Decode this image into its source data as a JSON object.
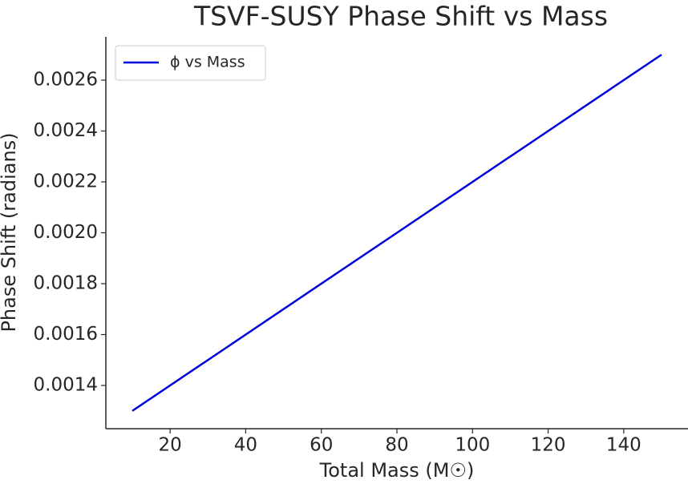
{
  "chart_data": {
    "type": "line",
    "title": "TSVF-SUSY Phase Shift vs Mass",
    "xlabel": "Total Mass (M☉)",
    "ylabel": "Phase Shift (radians)",
    "x": [
      10,
      150
    ],
    "series": [
      {
        "name": "ϕ vs Mass",
        "color": "#0000dd",
        "values": [
          0.0013,
          0.0027
        ]
      }
    ],
    "xlim": [
      3,
      157
    ],
    "xticks": [
      20,
      40,
      60,
      80,
      100,
      120,
      140
    ],
    "ylim": [
      0.00123,
      0.00277
    ],
    "yticks": [
      {
        "value": 0.0014,
        "label": "0.0014"
      },
      {
        "value": 0.0016,
        "label": "0.0016"
      },
      {
        "value": 0.0018,
        "label": "0.0018"
      },
      {
        "value": 0.002,
        "label": "0.0020"
      },
      {
        "value": 0.0022,
        "label": "0.0022"
      },
      {
        "value": 0.0024,
        "label": "0.0024"
      },
      {
        "value": 0.0026,
        "label": "0.0026"
      }
    ],
    "legend": "upper left",
    "grid": false
  }
}
